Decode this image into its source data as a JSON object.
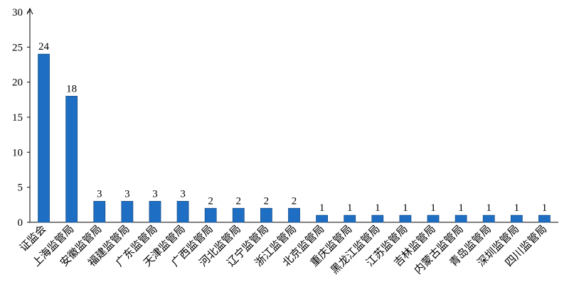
{
  "chart_data": {
    "type": "bar",
    "categories": [
      "证监会",
      "上海监管局",
      "安徽监管局",
      "福建监管局",
      "广东监管局",
      "天津监管局",
      "广西监管局",
      "河北监管局",
      "辽宁监管局",
      "浙江监管局",
      "北京监管局",
      "重庆监管局",
      "黑龙江监管局",
      "江苏监管局",
      "吉林监管局",
      "内蒙古监管局",
      "青岛监管局",
      "深圳监管局",
      "四川监管局"
    ],
    "values": [
      24,
      18,
      3,
      3,
      3,
      3,
      2,
      2,
      2,
      2,
      1,
      1,
      1,
      1,
      1,
      1,
      1,
      1,
      1
    ],
    "color": "#1e6fc3",
    "ylim": [
      0,
      30
    ],
    "yticks": [
      0,
      5,
      10,
      15,
      20,
      25,
      30
    ],
    "grid": false
  }
}
